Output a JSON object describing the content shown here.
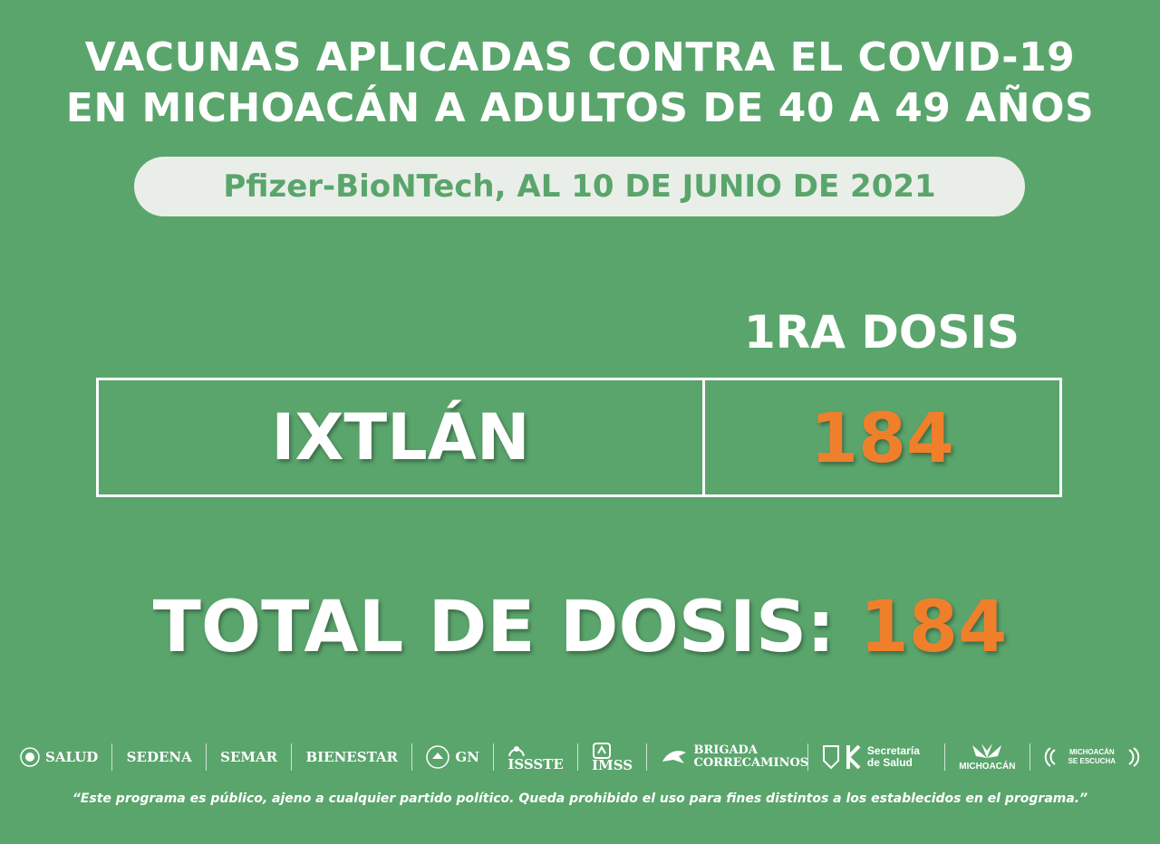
{
  "title": {
    "line1": "VACUNAS APLICADAS CONTRA EL COVID-19",
    "line2": "EN MICHOACÁN A ADULTOS DE 40 A 49 AÑOS"
  },
  "subtitle": "Pfizer-BioNTech, AL 10 DE JUNIO DE 2021",
  "table": {
    "column_header": "1RA DOSIS",
    "rows": [
      {
        "municipio": "IXTLÁN",
        "dosis": "184"
      }
    ]
  },
  "total": {
    "label": "TOTAL DE DOSIS:",
    "value": "184"
  },
  "logos": [
    {
      "name": "SALUD"
    },
    {
      "name": "SEDENA"
    },
    {
      "name": "SEMAR"
    },
    {
      "name": "BIENESTAR"
    },
    {
      "name": "GN"
    },
    {
      "name": "ISSSTE"
    },
    {
      "name": "IMSS"
    },
    {
      "name": "BRIGADA CORRECAMINOS"
    },
    {
      "name": "Secretaría de Salud"
    },
    {
      "name": "MICHOACÁN"
    },
    {
      "name": "MICHOACÁN SE ESCUCHA"
    }
  ],
  "footer": "“Este programa es público, ajeno a cualquier partido político. Queda prohibido el uso para fines distintos a los establecidos en el programa.”",
  "colors": {
    "background": "#5aa56c",
    "accent": "#f07f2c",
    "pill": "#e9efe8",
    "text": "#ffffff"
  }
}
